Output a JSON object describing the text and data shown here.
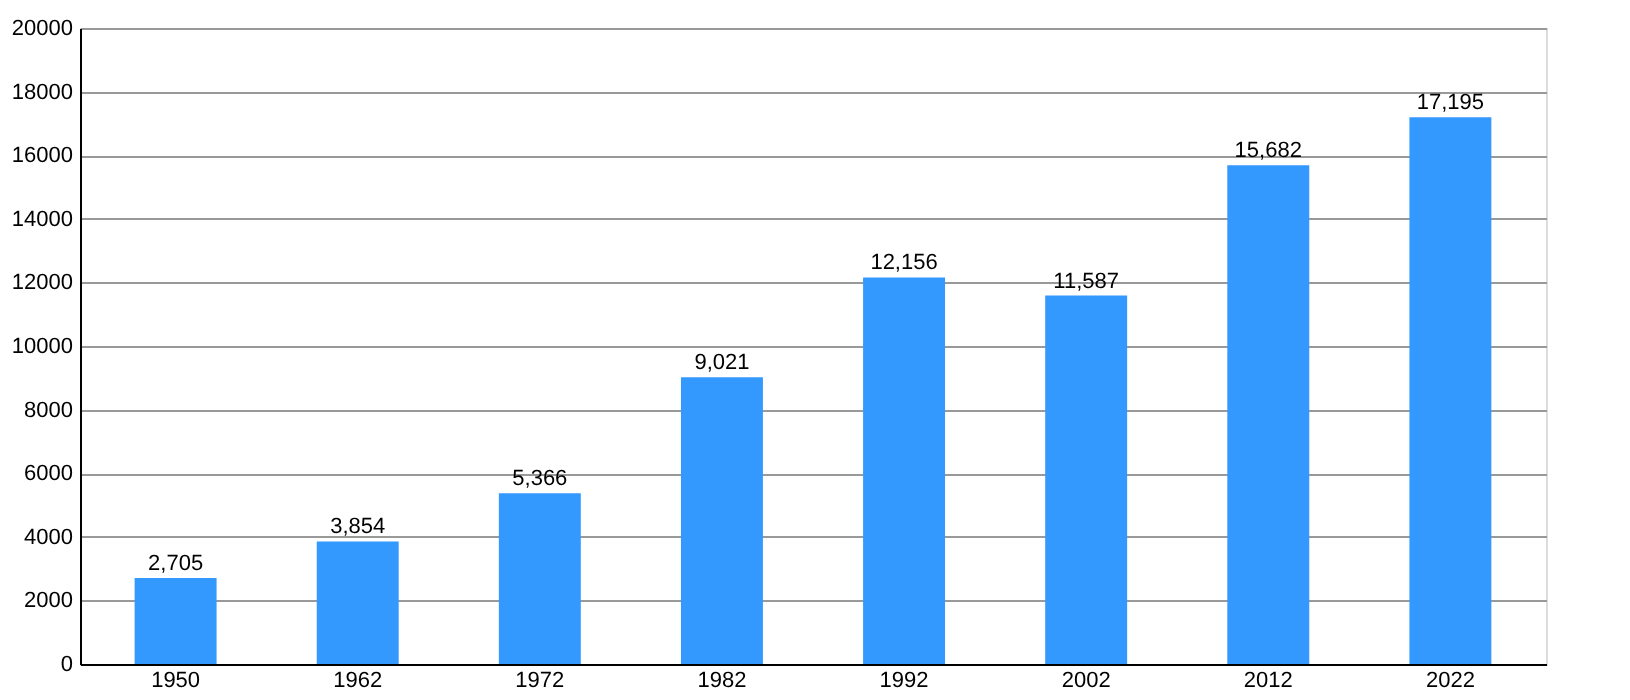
{
  "chart_data": {
    "type": "bar",
    "categories": [
      "1950",
      "1962",
      "1972",
      "1982",
      "1992",
      "2002",
      "2012",
      "2022"
    ],
    "values": [
      2705,
      3854,
      5366,
      9021,
      12156,
      11587,
      15682,
      17195
    ],
    "value_labels": [
      "2,705",
      "3,854",
      "5,366",
      "9,021",
      "12,156",
      "11,587",
      "15,682",
      "17,195"
    ],
    "color": "#3399ff",
    "ylim": [
      0,
      20000
    ],
    "yticks": [
      0,
      2000,
      4000,
      6000,
      8000,
      10000,
      12000,
      14000,
      16000,
      18000,
      20000
    ],
    "grid": "y"
  }
}
